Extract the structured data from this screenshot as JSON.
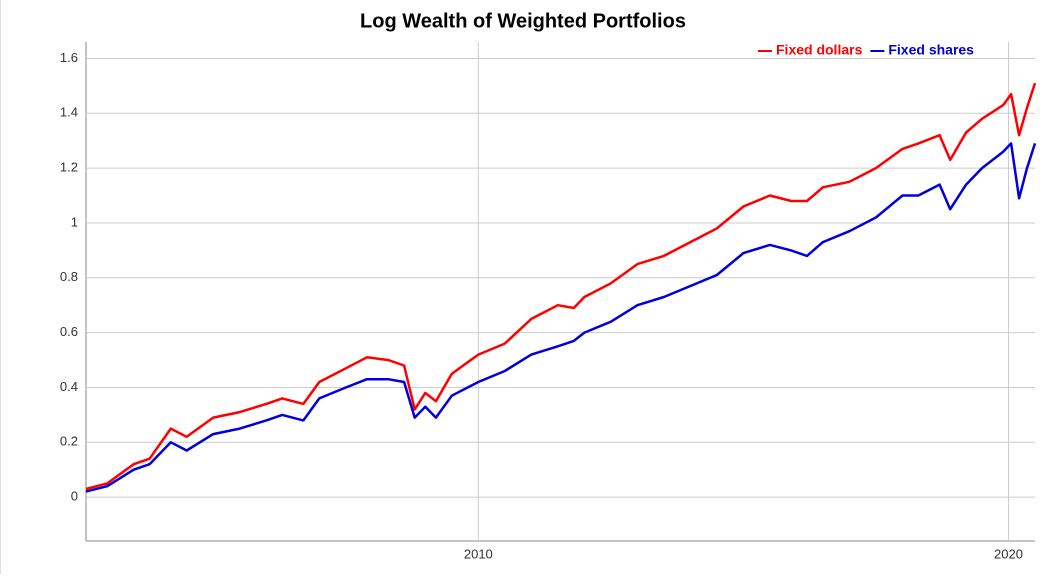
{
  "chart_data": {
    "type": "line",
    "title": "Log Wealth of Weighted Portfolios",
    "x": [
      2002.6,
      2003.0,
      2003.5,
      2003.8,
      2004.2,
      2004.5,
      2005.0,
      2005.5,
      2006.0,
      2006.3,
      2006.7,
      2007.0,
      2007.5,
      2007.9,
      2008.3,
      2008.6,
      2008.8,
      2009.0,
      2009.2,
      2009.5,
      2010.0,
      2010.5,
      2011.0,
      2011.5,
      2011.8,
      2012.0,
      2012.5,
      2013.0,
      2013.5,
      2014.0,
      2014.5,
      2015.0,
      2015.5,
      2015.9,
      2016.2,
      2016.5,
      2017.0,
      2017.5,
      2018.0,
      2018.3,
      2018.7,
      2018.9,
      2019.2,
      2019.5,
      2019.9,
      2020.05,
      2020.2,
      2020.35,
      2020.5
    ],
    "series": [
      {
        "name": "Fixed dollars",
        "color": "#ff0000",
        "values": [
          0.03,
          0.05,
          0.12,
          0.14,
          0.25,
          0.22,
          0.29,
          0.31,
          0.34,
          0.36,
          0.34,
          0.42,
          0.47,
          0.51,
          0.5,
          0.48,
          0.32,
          0.38,
          0.35,
          0.45,
          0.52,
          0.56,
          0.65,
          0.7,
          0.69,
          0.73,
          0.78,
          0.85,
          0.88,
          0.93,
          0.98,
          1.06,
          1.1,
          1.08,
          1.08,
          1.13,
          1.15,
          1.2,
          1.27,
          1.29,
          1.32,
          1.23,
          1.33,
          1.38,
          1.43,
          1.47,
          1.32,
          1.42,
          1.51
        ]
      },
      {
        "name": "Fixed shares",
        "color": "#0000dd",
        "values": [
          0.02,
          0.04,
          0.1,
          0.12,
          0.2,
          0.17,
          0.23,
          0.25,
          0.28,
          0.3,
          0.28,
          0.36,
          0.4,
          0.43,
          0.43,
          0.42,
          0.29,
          0.33,
          0.29,
          0.37,
          0.42,
          0.46,
          0.52,
          0.55,
          0.57,
          0.6,
          0.64,
          0.7,
          0.73,
          0.77,
          0.81,
          0.89,
          0.92,
          0.9,
          0.88,
          0.93,
          0.97,
          1.02,
          1.1,
          1.1,
          1.14,
          1.05,
          1.14,
          1.2,
          1.26,
          1.29,
          1.09,
          1.2,
          1.29
        ]
      }
    ],
    "xlim": [
      2002.6,
      2020.5
    ],
    "xticks": [
      2010,
      2020
    ],
    "ylim": [
      -0.16,
      1.66
    ],
    "yticks": [
      0,
      0.2,
      0.4,
      0.6,
      0.8,
      1,
      1.2,
      1.4,
      1.6
    ],
    "grid": true,
    "legend": "top-right"
  }
}
